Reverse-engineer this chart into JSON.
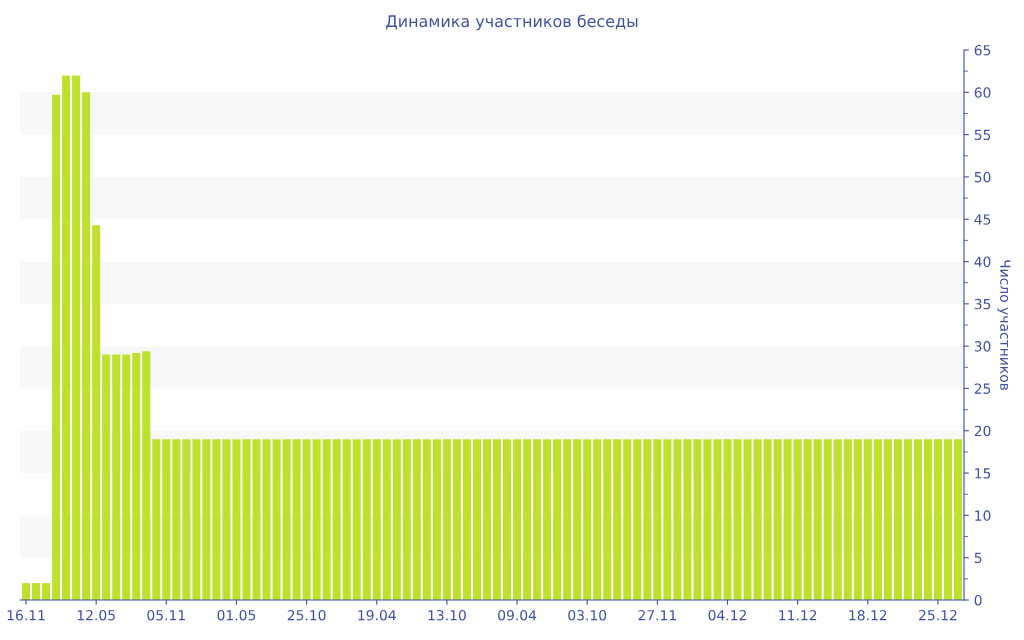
{
  "chart_data": {
    "type": "bar",
    "title": "Динамика участников беседы",
    "ylabel": "Число участников",
    "categories": [
      "16.11",
      null,
      null,
      null,
      null,
      null,
      null,
      "12.05",
      null,
      null,
      null,
      null,
      null,
      null,
      "05.11",
      null,
      null,
      null,
      null,
      null,
      null,
      "01.05",
      null,
      null,
      null,
      null,
      null,
      null,
      "25.10",
      null,
      null,
      null,
      null,
      null,
      null,
      "19.04",
      null,
      null,
      null,
      null,
      null,
      null,
      "13.10",
      null,
      null,
      null,
      null,
      null,
      null,
      "09.04",
      null,
      null,
      null,
      null,
      null,
      null,
      "03.10",
      null,
      null,
      null,
      null,
      null,
      null,
      "27.11",
      null,
      null,
      null,
      null,
      null,
      null,
      "04.12",
      null,
      null,
      null,
      null,
      null,
      null,
      "11.12",
      null,
      null,
      null,
      null,
      null,
      null,
      "18.12",
      null,
      null,
      null,
      null,
      null,
      null,
      "25.12",
      null,
      null
    ],
    "values": [
      2,
      2,
      2,
      59.7,
      62,
      62,
      60,
      44.3,
      29,
      29,
      29,
      29.2,
      29.4,
      19,
      19,
      19,
      19,
      19,
      19,
      19,
      19,
      19,
      19,
      19,
      19,
      19,
      19,
      19,
      19,
      19,
      19,
      19,
      19,
      19,
      19,
      19,
      19,
      19,
      19,
      19,
      19,
      19,
      19,
      19,
      19,
      19,
      19,
      19,
      19,
      19,
      19,
      19,
      19,
      19,
      19,
      19,
      19,
      19,
      19,
      19,
      19,
      19,
      19,
      19,
      19,
      19,
      19,
      19,
      19,
      19,
      19,
      19,
      19,
      19,
      19,
      19,
      19,
      19,
      19,
      19,
      19,
      19,
      19,
      19,
      19,
      19,
      19,
      19,
      19,
      19,
      19,
      19,
      19,
      19
    ],
    "color": "#bde12d",
    "ylim": [
      0,
      65
    ],
    "yticks": [
      0,
      5,
      10,
      15,
      20,
      25,
      30,
      35,
      40,
      45,
      50,
      55,
      60,
      65
    ],
    "bands": [
      {
        "axis": "y",
        "from": 5,
        "to": 10,
        "color": "#f8f8f8"
      },
      {
        "axis": "y",
        "from": 15,
        "to": 20,
        "color": "#f8f8f8"
      },
      {
        "axis": "y",
        "from": 25,
        "to": 30,
        "color": "#f8f8f8"
      },
      {
        "axis": "y",
        "from": 35,
        "to": 40,
        "color": "#f8f8f8"
      },
      {
        "axis": "y",
        "from": 45,
        "to": 50,
        "color": "#f8f8f8"
      },
      {
        "axis": "y",
        "from": 55,
        "to": 60,
        "color": "#f8f8f8"
      }
    ]
  }
}
